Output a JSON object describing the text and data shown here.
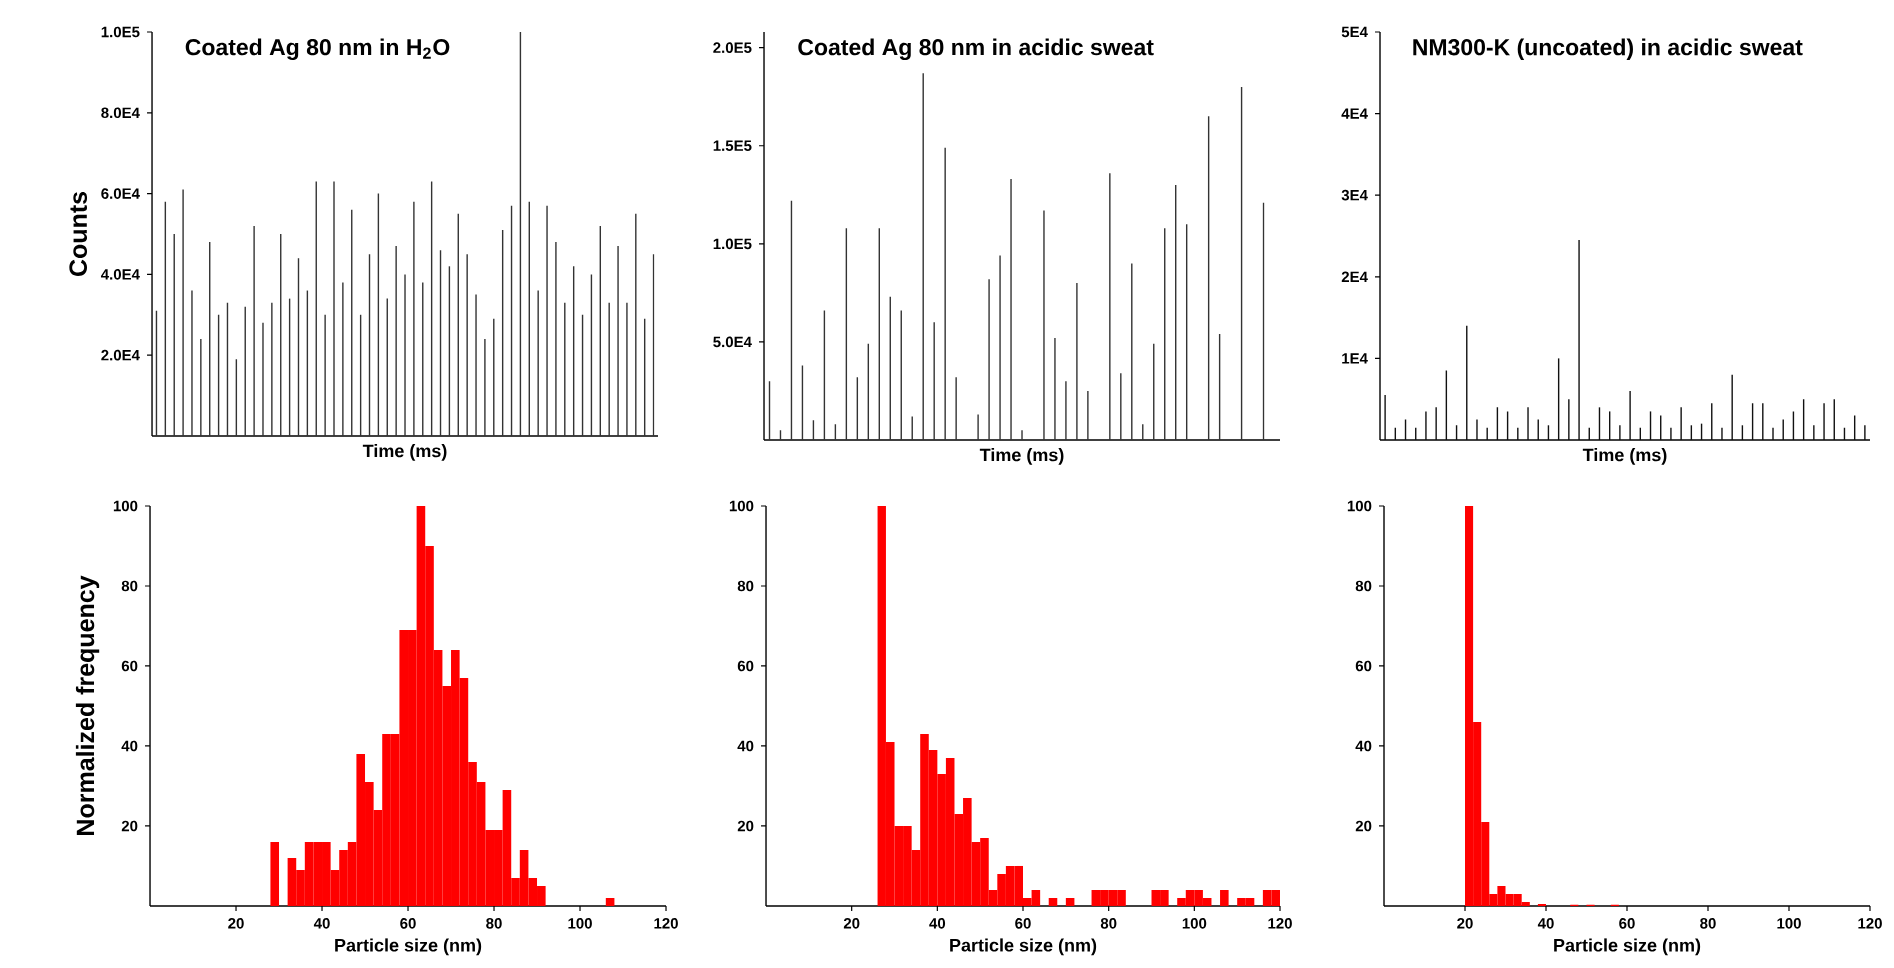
{
  "chart_data": [
    {
      "type": "bar",
      "title": "Coated Ag 80 nm in H$_{2}$O",
      "xlabel": "Time (ms)",
      "ylabel": "Counts",
      "color": "#333333",
      "categories": [
        null,
        null,
        null,
        null,
        null,
        null,
        null,
        null,
        null,
        null,
        null,
        null,
        null,
        null,
        null,
        null,
        null,
        null,
        null,
        null,
        null,
        null,
        null,
        null,
        null,
        null,
        null,
        null,
        null,
        null,
        null,
        null,
        null,
        null,
        null,
        null,
        null,
        null,
        null,
        null,
        null,
        null,
        null,
        null,
        null,
        null,
        null,
        null,
        null,
        null,
        null,
        null,
        null,
        null,
        null,
        null,
        null
      ],
      "values": [
        31000,
        58000,
        50000,
        61000,
        36000,
        24000,
        48000,
        30000,
        33000,
        19000,
        32000,
        52000,
        28000,
        33000,
        50000,
        34000,
        44000,
        36000,
        63000,
        30000,
        63000,
        38000,
        56000,
        30000,
        45000,
        60000,
        34000,
        47000,
        40000,
        58000,
        38000,
        63000,
        46000,
        42000,
        55000,
        45000,
        35000,
        24000,
        29000,
        51000,
        57000,
        100000,
        58000,
        36000,
        57000,
        48000,
        33000,
        42000,
        30000,
        40000,
        52000,
        33000,
        47000,
        33000,
        55000,
        29000,
        45000
      ],
      "ylim": [
        0,
        100000
      ],
      "yticks": [
        {
          "value": 20000,
          "label": "2.0E4"
        },
        {
          "value": 40000,
          "label": "4.0E4"
        },
        {
          "value": 60000,
          "label": "6.0E4"
        },
        {
          "value": 80000,
          "label": "8.0E4"
        },
        {
          "value": 100000,
          "label": "1.0E5"
        }
      ]
    },
    {
      "type": "bar",
      "title": "Coated Ag 80 nm in acidic sweat",
      "xlabel": "Time (ms)",
      "color": "#333333",
      "categories": [
        null,
        null,
        null,
        null,
        null,
        null,
        null,
        null,
        null,
        null,
        null,
        null,
        null,
        null,
        null,
        null,
        null,
        null,
        null,
        null,
        null,
        null,
        null,
        null,
        null,
        null,
        null,
        null,
        null,
        null,
        null,
        null,
        null,
        null,
        null,
        null,
        null,
        null,
        null,
        null,
        null,
        null,
        null,
        null,
        null,
        null,
        null
      ],
      "values": [
        30000,
        5000,
        122000,
        38000,
        10000,
        66000,
        8000,
        108000,
        32000,
        49000,
        108000,
        73000,
        66000,
        12000,
        187000,
        60000,
        149000,
        32000,
        null,
        13000,
        82000,
        94000,
        133000,
        5000,
        null,
        117000,
        52000,
        30000,
        80000,
        25000,
        null,
        136000,
        34000,
        90000,
        8000,
        49000,
        108000,
        130000,
        110000,
        null,
        165000,
        54000,
        null,
        180000,
        null,
        121000,
        null
      ],
      "ylim": [
        0,
        208000
      ],
      "yticks": [
        {
          "value": 50000,
          "label": "5.0E4"
        },
        {
          "value": 100000,
          "label": "1.0E5"
        },
        {
          "value": 150000,
          "label": "1.5E5"
        },
        {
          "value": 200000,
          "label": "2.0E5"
        }
      ]
    },
    {
      "type": "bar",
      "title": "NM300-K (uncoated) in acidic sweat",
      "xlabel": "Time (ms)",
      "color": "#111111",
      "categories": [
        null,
        null,
        null,
        null,
        null,
        null,
        null,
        null,
        null,
        null,
        null,
        null,
        null,
        null,
        null,
        null,
        null,
        null,
        null,
        null,
        null,
        null,
        null,
        null,
        null,
        null,
        null,
        null,
        null,
        null,
        null,
        null,
        null,
        null,
        null,
        null,
        null,
        null,
        null,
        null,
        null,
        null,
        null,
        null,
        null,
        null,
        null,
        null
      ],
      "values": [
        5500,
        1500,
        2500,
        1500,
        3500,
        4000,
        8500,
        1800,
        14000,
        2500,
        1500,
        4000,
        3500,
        1500,
        4000,
        2500,
        1800,
        10000,
        5000,
        24500,
        1500,
        4000,
        3500,
        1800,
        6000,
        1500,
        3500,
        3000,
        1500,
        4000,
        1800,
        2000,
        4500,
        1500,
        8000,
        1800,
        4500,
        4500,
        1500,
        2500,
        3500,
        5000,
        1800,
        4500,
        5000,
        1500,
        3000,
        1800
      ],
      "ylim": [
        0,
        50000
      ],
      "yticks": [
        {
          "value": 10000,
          "label": "1E4"
        },
        {
          "value": 20000,
          "label": "2E4"
        },
        {
          "value": 30000,
          "label": "3E4"
        },
        {
          "value": 40000,
          "label": "4E4"
        },
        {
          "value": 50000,
          "label": "5E4"
        }
      ]
    },
    {
      "type": "histogram",
      "xlabel": "Particle size (nm)",
      "ylabel": "Normalized frequency",
      "color": "#ff0000",
      "bins": [
        28,
        30,
        32,
        34,
        36,
        38,
        40,
        42,
        44,
        46,
        48,
        50,
        52,
        54,
        56,
        58,
        60,
        62,
        64,
        66,
        68,
        70,
        72,
        74,
        76,
        78,
        80,
        82,
        84,
        86,
        88,
        90,
        92,
        94,
        96,
        98,
        100,
        102,
        104,
        106,
        108
      ],
      "values": [
        16,
        0,
        12,
        9,
        16,
        16,
        16,
        9,
        14,
        16,
        38,
        31,
        24,
        43,
        43,
        69,
        69,
        100,
        90,
        64,
        55,
        64,
        57,
        36,
        31,
        19,
        19,
        29,
        7,
        14,
        7,
        5,
        0,
        0,
        0,
        0,
        0,
        0,
        0,
        2
      ],
      "xlim": [
        0,
        120
      ],
      "xticks": [
        20,
        40,
        60,
        80,
        100,
        120
      ],
      "ylim": [
        0,
        100
      ],
      "yticks": [
        20,
        40,
        60,
        80,
        100
      ]
    },
    {
      "type": "histogram",
      "xlabel": "Particle size (nm)",
      "color": "#ff0000",
      "bins": [
        26,
        28,
        30,
        32,
        34,
        36,
        38,
        40,
        42,
        44,
        46,
        48,
        50,
        52,
        54,
        56,
        58,
        60,
        62,
        64,
        66,
        68,
        70,
        72,
        74,
        76,
        78,
        80,
        82,
        84,
        86,
        88,
        90,
        92,
        94,
        96,
        98,
        100,
        102,
        104,
        106,
        108,
        110,
        112,
        114,
        116,
        118,
        120
      ],
      "values": [
        100,
        41,
        20,
        20,
        14,
        43,
        39,
        33,
        37,
        23,
        27,
        16,
        17,
        4,
        8,
        10,
        10,
        2,
        4,
        0,
        2,
        0,
        2,
        0,
        0,
        4,
        4,
        4,
        4,
        0,
        0,
        0,
        4,
        4,
        0,
        2,
        4,
        4,
        2,
        0,
        4,
        0,
        2,
        2,
        0,
        4,
        4
      ],
      "xlim": [
        0,
        120
      ],
      "xticks": [
        20,
        40,
        60,
        80,
        100,
        120
      ],
      "ylim": [
        0,
        100
      ],
      "yticks": [
        20,
        40,
        60,
        80,
        100
      ]
    },
    {
      "type": "histogram",
      "xlabel": "Particle size (nm)",
      "color": "#ff0000",
      "bins": [
        20,
        22,
        24,
        26,
        28,
        30,
        32,
        34,
        36,
        38,
        40,
        42,
        44,
        46,
        48,
        50,
        52,
        54,
        56,
        58
      ],
      "values": [
        100,
        46,
        21,
        3,
        5,
        3,
        3,
        1,
        0,
        0.5,
        0,
        0,
        0,
        0.3,
        0,
        0.3,
        0,
        0,
        0.3
      ],
      "xlim": [
        0,
        120
      ],
      "xticks": [
        20,
        40,
        60,
        80,
        100,
        120
      ],
      "ylim": [
        0,
        100
      ],
      "yticks": [
        20,
        40,
        60,
        80,
        100
      ]
    }
  ]
}
